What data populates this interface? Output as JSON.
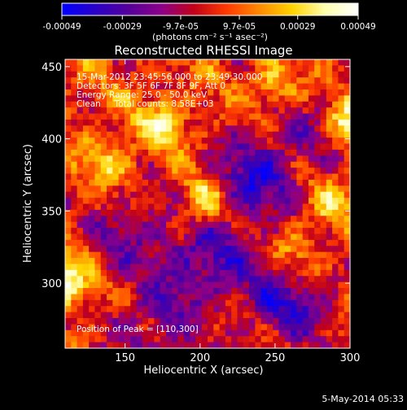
{
  "title": "Reconstructed RHESSI Image",
  "colorbar": {
    "ticks": [
      "-0.00049",
      "-0.00029",
      "-9.7e-05",
      "9.7e-05",
      "0.00029",
      "0.00049"
    ],
    "tick_values": [
      -0.00049,
      -0.00029,
      -9.7e-05,
      9.7e-05,
      0.00029,
      0.00049
    ],
    "unit_label": "(photons cm⁻² s⁻¹ asec⁻²)",
    "colors": [
      "#0000ff",
      "#2a00c8",
      "#54009a",
      "#8b008b",
      "#c0001a",
      "#ff3a00",
      "#ff8a00",
      "#ffd400",
      "#ffffb0",
      "#ffffff"
    ]
  },
  "info_lines": [
    "15-Mar-2012 23:45:56.000 to 23:49:30.000",
    "Detectors: 3F 5F 6F 7F 8F 9F, Att 0",
    "Energy Range: 25.0 - 50.0 keV",
    "Clean     Total counts: 8.58E+03"
  ],
  "peak_label": "Position of Peak = [110,300]",
  "footer_date": "5-May-2014 05:33",
  "chart_data": {
    "type": "heatmap",
    "title": "Reconstructed RHESSI Image",
    "xlabel": "Heliocentric X (arcsec)",
    "ylabel": "Heliocentric Y (arcsec)",
    "xlim": [
      110,
      300
    ],
    "ylim": [
      255,
      455
    ],
    "xticks": [
      150,
      200,
      250,
      300
    ],
    "yticks": [
      300,
      350,
      400,
      450
    ],
    "xtick_labels": [
      "150",
      "200",
      "250",
      "300"
    ],
    "ytick_labels": [
      "300",
      "350",
      "400",
      "450"
    ],
    "value_range": [
      -0.00049,
      0.00049
    ],
    "peak": [
      110,
      300
    ],
    "grid_cols": 48,
    "grid_rows": 48
  }
}
